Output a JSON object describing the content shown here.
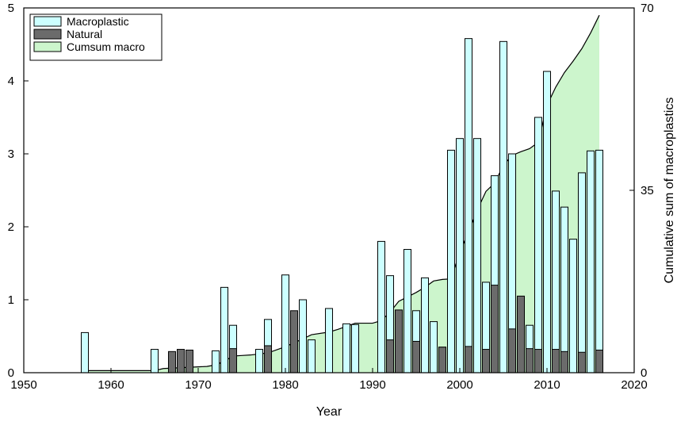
{
  "chart_data": {
    "type": "bar",
    "xlabel": "Year",
    "ylabel": "",
    "y2label": "Cumulative sum of macroplastics",
    "xlim": [
      1950,
      2020
    ],
    "ylim": [
      0,
      5
    ],
    "y2lim": [
      0,
      70
    ],
    "xticks": [
      1950,
      1960,
      1970,
      1980,
      1990,
      2000,
      2010,
      2020
    ],
    "yticks": [
      0,
      1,
      2,
      3,
      4,
      5
    ],
    "y2ticks": [
      0,
      35,
      70
    ],
    "grid": false,
    "legend": {
      "position": "top-left",
      "entries": [
        "Macroplastic",
        "Natural",
        "Cumsum macro"
      ]
    },
    "colors": {
      "macroplastic": "#ccffff",
      "natural": "#6b6b6b",
      "cumsum": "#ccf5cc"
    },
    "series": [
      {
        "name": "Macroplastic",
        "x": [
          1957,
          1965,
          1972,
          1973,
          1974,
          1977,
          1978,
          1980,
          1982,
          1983,
          1985,
          1987,
          1988,
          1991,
          1992,
          1994,
          1995,
          1996,
          1997,
          1998,
          1999,
          2000,
          2001,
          2002,
          2003,
          2004,
          2005,
          2006,
          2008,
          2009,
          2010,
          2011,
          2012,
          2013,
          2014,
          2015,
          2016
        ],
        "values": [
          0.55,
          0.32,
          0.3,
          1.17,
          0.65,
          0.32,
          0.73,
          1.34,
          1.0,
          0.45,
          0.88,
          0.67,
          0.66,
          1.8,
          1.33,
          1.69,
          0.85,
          1.3,
          0.7,
          0.35,
          3.05,
          3.21,
          4.58,
          3.21,
          1.24,
          2.7,
          4.54,
          3.0,
          0.65,
          3.5,
          4.13,
          2.49,
          2.27,
          1.83,
          2.74,
          3.04,
          3.05
        ]
      },
      {
        "name": "Natural",
        "x": [
          1967,
          1968,
          1969,
          1974,
          1978,
          1981,
          1992,
          1993,
          1995,
          1998,
          2001,
          2003,
          2004,
          2006,
          2007,
          2008,
          2009,
          2011,
          2012,
          2014,
          2016
        ],
        "values": [
          0.29,
          0.32,
          0.31,
          0.33,
          0.37,
          0.85,
          0.45,
          0.86,
          0.43,
          0.35,
          0.36,
          0.32,
          1.2,
          0.6,
          1.05,
          0.33,
          0.32,
          0.32,
          0.29,
          0.28,
          0.31
        ]
      },
      {
        "name": "Cumsum macro",
        "x": [
          1957,
          1965,
          1966,
          1971,
          1972,
          1973,
          1974,
          1975,
          1976,
          1978,
          1980,
          1982,
          1983,
          1985,
          1986,
          1987,
          1988,
          1990,
          1991,
          1992,
          1993,
          1995,
          1996,
          1997,
          1998,
          1999,
          2000,
          2001,
          2002,
          2003,
          2004,
          2005,
          2006,
          2007,
          2008,
          2009,
          2010,
          2011,
          2012,
          2013,
          2014,
          2015,
          2016
        ],
        "values": [
          0.4,
          0.4,
          0.8,
          1.2,
          1.5,
          2.2,
          3.2,
          3.3,
          3.4,
          3.8,
          5.0,
          6.5,
          7.3,
          7.8,
          8.3,
          8.9,
          9.5,
          9.5,
          10.0,
          11.6,
          13.7,
          15.4,
          16.4,
          17.6,
          17.9,
          18.0,
          23.1,
          27.0,
          31.2,
          34.8,
          36.4,
          39.8,
          41.7,
          42.4,
          43.0,
          44.2,
          51.3,
          54.8,
          57.6,
          59.8,
          62.2,
          65.2,
          68.6
        ]
      }
    ]
  }
}
